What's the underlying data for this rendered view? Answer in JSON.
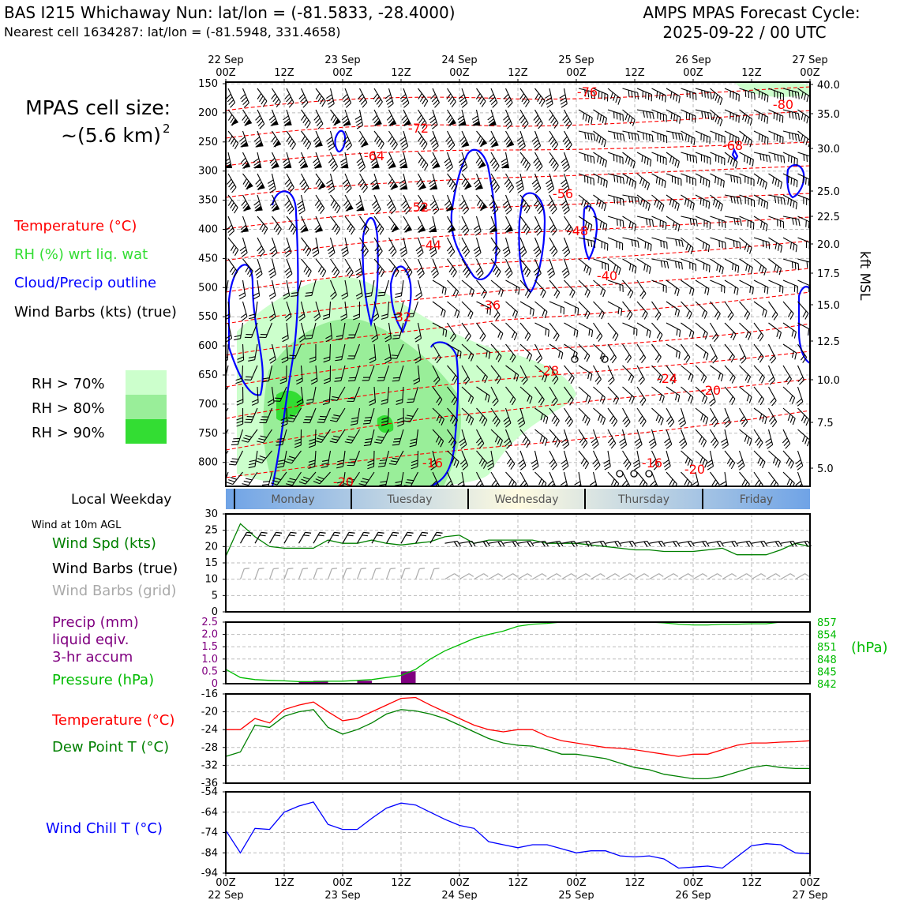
{
  "header": {
    "station_line": "BAS I215 Whichaway Nun: lat/lon = (-81.5833, -28.4000)",
    "cell_line": "Nearest cell 1634287: lat/lon = (-81.5948, 331.4658)",
    "forecast_line1": "AMPS MPAS Forecast Cycle:",
    "forecast_line2": "2025-09-22 / 00 UTC"
  },
  "side": {
    "cell_size_title": "MPAS cell size:",
    "cell_size_value": "~(5.6 km)",
    "cell_size_exp": "2",
    "legend_temperature": "Temperature (°C)",
    "legend_rh": "RH (%) wrt liq. wat",
    "legend_cloud": "Cloud/Precip outline",
    "legend_barbs": "Wind Barbs (kts) (true)",
    "rh70": "RH > 70%",
    "rh80": "RH > 80%",
    "rh90": "RH > 90%",
    "local_weekday": "Local Weekday",
    "wind10m": "Wind at 10m AGL",
    "wind_spd": "Wind Spd (kts)",
    "wind_barbs_true": "Wind Barbs (true)",
    "wind_barbs_grid": "Wind Barbs (grid)",
    "precip1": "Precip (mm)",
    "precip2": "liquid eqiv.",
    "precip3": "3-hr accum",
    "pressure": "Pressure (hPa)",
    "hpa": "(hPa)",
    "temp": "Temperature (°C)",
    "dew": "Dew Point T (°C)",
    "windchill": "Wind Chill T (°C)",
    "kft": "kft MSL"
  },
  "colors": {
    "temp": "#ff0000",
    "rh": "#33cc33",
    "cloud": "#0000ff",
    "barbs": "#000000",
    "grid_barbs": "#aaaaaa",
    "precip": "#800080",
    "pressure": "#00bb00",
    "dew": "#008000",
    "rh70": "#ccffcc",
    "rh80": "#99ee99",
    "rh90": "#33dd33"
  },
  "time_axis": {
    "top_labels": [
      {
        "l1": "22 Sep",
        "l2": "00Z"
      },
      {
        "l1": "",
        "l2": "12Z"
      },
      {
        "l1": "23 Sep",
        "l2": "00Z"
      },
      {
        "l1": "",
        "l2": "12Z"
      },
      {
        "l1": "24 Sep",
        "l2": "00Z"
      },
      {
        "l1": "",
        "l2": "12Z"
      },
      {
        "l1": "25 Sep",
        "l2": "00Z"
      },
      {
        "l1": "",
        "l2": "12Z"
      },
      {
        "l1": "26 Sep",
        "l2": "00Z"
      },
      {
        "l1": "",
        "l2": "12Z"
      },
      {
        "l1": "27 Sep",
        "l2": "00Z"
      }
    ],
    "weekdays": [
      "Monday",
      "Tuesday",
      "Wednesday",
      "Thursday",
      "Friday"
    ]
  },
  "chart_data": [
    {
      "type": "heatmap",
      "panel": "vertical-profile",
      "y_left_pressure_hpa": [
        150,
        200,
        250,
        300,
        350,
        400,
        450,
        500,
        550,
        600,
        650,
        700,
        750,
        800
      ],
      "y_right_kft": [
        "40.0",
        "35.0",
        "30.0",
        "25.0",
        "22.5",
        "20.0",
        "17.5",
        "15.0",
        "12.5",
        "10.0",
        "7.5",
        "5.0"
      ],
      "temp_contour_labels": [
        "-76",
        "-80",
        "-72",
        "-64",
        "-68",
        "-56",
        "-52",
        "-48",
        "-44",
        "-40",
        "-36",
        "-32",
        "-28",
        "-24",
        "-20",
        "-16",
        "-20",
        "-16",
        "-20"
      ]
    },
    {
      "type": "line",
      "panel": "wind-10m",
      "ylim": [
        0,
        30
      ],
      "y_ticks": [
        "30",
        "25",
        "20",
        "15",
        "10",
        "5",
        "0"
      ],
      "series": [
        {
          "name": "Wind Spd (kts)",
          "x_hours": [
            0,
            3,
            6,
            9,
            12,
            15,
            18,
            21,
            24,
            27,
            30,
            33,
            36,
            39,
            42,
            45,
            48,
            51,
            54,
            57,
            60,
            63,
            66,
            69,
            72,
            75,
            78,
            81,
            84,
            87,
            90,
            93,
            96,
            99,
            102,
            105,
            108,
            111,
            114,
            117,
            120
          ],
          "values": [
            17,
            27,
            23,
            20,
            19.5,
            19.5,
            19.5,
            22,
            21,
            21,
            22,
            21,
            20.5,
            21,
            21.5,
            23,
            23.5,
            21,
            22,
            22,
            22,
            22,
            21,
            21,
            21,
            20.5,
            20,
            19.5,
            19,
            19,
            18.5,
            18.5,
            18.5,
            19,
            19.5,
            17.5,
            17.5,
            17.5,
            19,
            21,
            20
          ]
        }
      ]
    },
    {
      "type": "bar",
      "panel": "precip-pressure",
      "precip_ylim": [
        0,
        2.5
      ],
      "precip_ticks": [
        "2.5",
        "2.0",
        "1.5",
        "1.0",
        "0.5",
        "0"
      ],
      "pressure_ticks": [
        "857",
        "854",
        "851",
        "848",
        "845",
        "842"
      ],
      "precip_x_hours": [
        15,
        18,
        27,
        36
      ],
      "precip_values": [
        0.1,
        0.12,
        0.12,
        0.5
      ],
      "pressure_x_hours": [
        0,
        3,
        6,
        9,
        12,
        15,
        18,
        21,
        24,
        27,
        30,
        33,
        36,
        39,
        42,
        45,
        48,
        51,
        54,
        57,
        60,
        63,
        66,
        69,
        72,
        75,
        78,
        81,
        84,
        87,
        90,
        93,
        96,
        99,
        102,
        105,
        108,
        111,
        114,
        117,
        120
      ],
      "pressure_values": [
        845.5,
        843.5,
        843,
        842.8,
        842.7,
        842.5,
        842.5,
        842.6,
        842.6,
        842.8,
        843,
        843.5,
        844,
        845.5,
        848,
        850,
        851.5,
        853,
        854,
        854.8,
        856,
        856.5,
        856.7,
        857,
        857,
        857,
        857,
        857,
        857,
        857,
        856.8,
        856.5,
        856.3,
        856.3,
        856.5,
        856.5,
        856.6,
        856.6,
        857,
        857,
        857
      ]
    },
    {
      "type": "line",
      "panel": "temperature-dewpoint",
      "ylim": [
        -36,
        -16
      ],
      "y_ticks": [
        "-16",
        "-20",
        "-24",
        "-28",
        "-32",
        "-36"
      ],
      "x_hours": [
        0,
        3,
        6,
        9,
        12,
        15,
        18,
        21,
        24,
        27,
        30,
        33,
        36,
        39,
        42,
        45,
        48,
        51,
        54,
        57,
        60,
        63,
        66,
        69,
        72,
        75,
        78,
        81,
        84,
        87,
        90,
        93,
        96,
        99,
        102,
        105,
        108,
        111,
        114,
        117,
        120
      ],
      "series": [
        {
          "name": "Temperature (°C)",
          "values": [
            -24,
            -24,
            -21.5,
            -22.5,
            -19.5,
            -18.5,
            -17.8,
            -20,
            -22,
            -21.5,
            -20,
            -18.5,
            -17,
            -16.8,
            -18.5,
            -20,
            -21.5,
            -23,
            -24,
            -24.5,
            -24,
            -24,
            -25.5,
            -26.5,
            -27,
            -27.5,
            -28,
            -28.2,
            -28.5,
            -29,
            -29.5,
            -30,
            -29.5,
            -29.5,
            -28.5,
            -27.5,
            -27,
            -27,
            -26.8,
            -26.7,
            -26.5
          ]
        },
        {
          "name": "Dew Point T (°C)",
          "values": [
            -30,
            -29,
            -23,
            -23.5,
            -21,
            -20,
            -19.5,
            -23.5,
            -25,
            -24,
            -22.5,
            -20.5,
            -19.5,
            -19.8,
            -20.5,
            -21.5,
            -23,
            -24.5,
            -26,
            -27,
            -27.5,
            -27.7,
            -28.5,
            -29.5,
            -29.5,
            -30,
            -30.5,
            -31.5,
            -32.5,
            -33,
            -34,
            -34.5,
            -35,
            -35,
            -34.5,
            -33.5,
            -32.5,
            -32,
            -32.5,
            -32.7,
            -32.7
          ]
        }
      ]
    },
    {
      "type": "line",
      "panel": "wind-chill",
      "ylim": [
        -94,
        -54
      ],
      "y_ticks": [
        "-54",
        "-64",
        "-74",
        "-84",
        "-94"
      ],
      "x_hours": [
        0,
        3,
        6,
        9,
        12,
        15,
        18,
        21,
        24,
        27,
        30,
        33,
        36,
        39,
        42,
        45,
        48,
        51,
        54,
        57,
        60,
        63,
        66,
        69,
        72,
        75,
        78,
        81,
        84,
        87,
        90,
        93,
        96,
        99,
        102,
        105,
        108,
        111,
        114,
        117,
        120
      ],
      "series": [
        {
          "name": "Wind Chill T (°C)",
          "values": [
            -73,
            -84,
            -72,
            -72.5,
            -64,
            -61,
            -59,
            -70,
            -72.5,
            -72.5,
            -67,
            -62,
            -59.5,
            -60.5,
            -64,
            -67.5,
            -70.5,
            -72,
            -78.5,
            -80,
            -81.5,
            -80,
            -80,
            -82,
            -84,
            -83,
            -83,
            -85.5,
            -86,
            -85.5,
            -87,
            -91.5,
            -91,
            -90.5,
            -91.5,
            -86,
            -80.5,
            -79.5,
            -80,
            -84,
            -84.5
          ]
        }
      ]
    },
    {
      "type": "line",
      "panel": "bottom-time-axis",
      "x_tick_labels": [
        {
          "l1": "00Z",
          "l2": "22 Sep"
        },
        {
          "l1": "12Z",
          "l2": ""
        },
        {
          "l1": "00Z",
          "l2": "23 Sep"
        },
        {
          "l1": "12Z",
          "l2": ""
        },
        {
          "l1": "00Z",
          "l2": "24 Sep"
        },
        {
          "l1": "12Z",
          "l2": ""
        },
        {
          "l1": "00Z",
          "l2": "25 Sep"
        },
        {
          "l1": "12Z",
          "l2": ""
        },
        {
          "l1": "00Z",
          "l2": "26 Sep"
        },
        {
          "l1": "12Z",
          "l2": ""
        },
        {
          "l1": "00Z",
          "l2": "27 Sep"
        }
      ]
    }
  ]
}
